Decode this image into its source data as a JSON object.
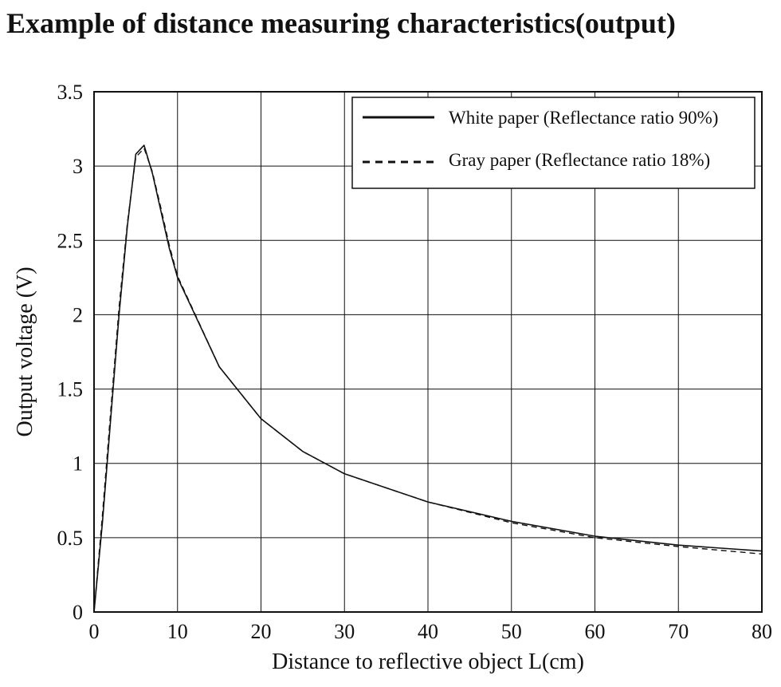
{
  "page_title": "Example of distance measuring characteristics(output)",
  "chart_data": {
    "type": "line",
    "title": "Example of distance measuring characteristics(output)",
    "xlabel": "Distance to reflective object L(cm)",
    "ylabel": "Output voltage (V)",
    "xlim": [
      0,
      80
    ],
    "ylim": [
      0,
      3.5
    ],
    "xticks": [
      0,
      10,
      20,
      30,
      40,
      50,
      60,
      70,
      80
    ],
    "yticks": [
      0,
      0.5,
      1,
      1.5,
      2,
      2.5,
      3,
      3.5
    ],
    "xtick_labels": [
      "0",
      "10",
      "20",
      "30",
      "40",
      "50",
      "60",
      "70",
      "80"
    ],
    "ytick_labels": [
      "0",
      "0.5",
      "1",
      "1.5",
      "2",
      "2.5",
      "3",
      "3.5"
    ],
    "grid": true,
    "legend_position": "top-right",
    "series": [
      {
        "name": "White paper (Reflectance ratio 90%)",
        "style": "solid",
        "x": [
          0,
          1,
          2,
          3,
          4,
          5,
          6,
          7,
          8,
          9,
          10,
          15,
          20,
          25,
          30,
          40,
          50,
          60,
          70,
          80
        ],
        "y": [
          0,
          0.6,
          1.3,
          2.0,
          2.6,
          3.08,
          3.14,
          2.95,
          2.7,
          2.45,
          2.25,
          1.65,
          1.3,
          1.08,
          0.93,
          0.74,
          0.61,
          0.51,
          0.45,
          0.41
        ]
      },
      {
        "name": "Gray paper (Reflectance ratio 18%)",
        "style": "dashed",
        "x": [
          0,
          1,
          2,
          3,
          4,
          5,
          6,
          7,
          8,
          9,
          10,
          15,
          20,
          25,
          30,
          40,
          50,
          60,
          70,
          80
        ],
        "y": [
          0,
          0.65,
          1.35,
          2.05,
          2.62,
          3.06,
          3.12,
          2.96,
          2.72,
          2.47,
          2.26,
          1.65,
          1.3,
          1.08,
          0.93,
          0.74,
          0.6,
          0.5,
          0.44,
          0.39
        ]
      }
    ]
  }
}
